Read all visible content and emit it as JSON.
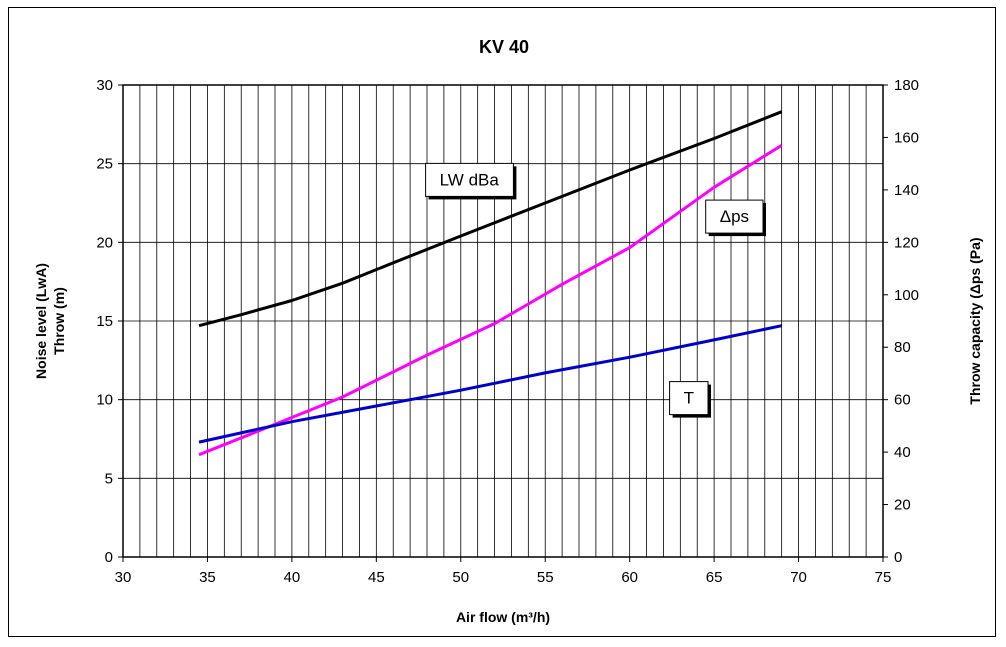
{
  "chart_data": {
    "type": "line",
    "title": "KV 40",
    "xlabel": "Air flow (m³/h)",
    "ylabel_left": [
      "Noise level (LwA)",
      "Throw  (m)"
    ],
    "ylabel_right": "Throw capacity (Δps (Pa)",
    "xlim": [
      30,
      75
    ],
    "ylim_left": [
      0,
      30
    ],
    "ylim_right": [
      0,
      180
    ],
    "x_ticks": [
      "30",
      "35",
      "40",
      "45",
      "50",
      "55",
      "60",
      "65",
      "70",
      "75"
    ],
    "y_left_ticks": [
      "0",
      "5",
      "10",
      "15",
      "20",
      "25",
      "30"
    ],
    "y_right_ticks": [
      "0",
      "20",
      "40",
      "60",
      "80",
      "100",
      "120",
      "140",
      "160",
      "180"
    ],
    "grid": true,
    "series": [
      {
        "name": "LW dBa",
        "axis": "left",
        "color": "#000000",
        "x": [
          34.5,
          37,
          40,
          43,
          46,
          50,
          55,
          60,
          65,
          69
        ],
        "y": [
          14.7,
          15.4,
          16.3,
          17.4,
          18.7,
          20.4,
          22.5,
          24.6,
          26.6,
          28.3
        ]
      },
      {
        "name": "Δps",
        "axis": "right",
        "color": "#ff00ff",
        "x": [
          34.5,
          38,
          43,
          48,
          52,
          56,
          60,
          65,
          69
        ],
        "y": [
          39,
          48,
          61,
          77,
          89,
          104,
          118,
          141,
          157
        ]
      },
      {
        "name": "T",
        "axis": "left",
        "color": "#0000cc",
        "x": [
          34.5,
          40,
          45,
          50,
          55,
          60,
          65,
          69
        ],
        "y": [
          7.3,
          8.6,
          9.6,
          10.6,
          11.7,
          12.7,
          13.8,
          14.7
        ]
      }
    ],
    "series_labels": [
      {
        "text": "LW dBa",
        "x": 50.5,
        "y": 24.0,
        "axis": "left"
      },
      {
        "text": "Δps",
        "x": 66.2,
        "y": 130,
        "axis": "right"
      },
      {
        "text": "T",
        "x": 63.5,
        "y": 60.8,
        "axis": "right"
      }
    ]
  }
}
